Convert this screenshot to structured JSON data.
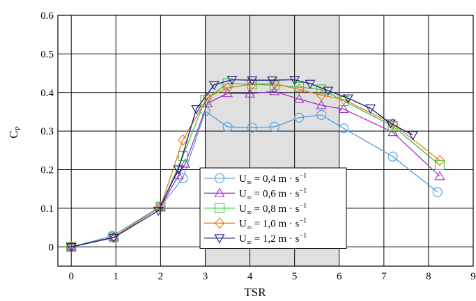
{
  "chart_data": {
    "type": "line",
    "xlabel": "TSR",
    "ylabel": "C",
    "ylabel_sub": "P",
    "xlim": [
      -0.3,
      9
    ],
    "ylim": [
      -0.05,
      0.6
    ],
    "x_ticks": [
      "0",
      "1",
      "2",
      "3",
      "4",
      "5",
      "6",
      "7",
      "8",
      "9"
    ],
    "y_ticks": [
      "0",
      "0.1",
      "0.2",
      "0.3",
      "0.4",
      "0.5",
      "0.6"
    ],
    "grid": true,
    "shaded_region": [
      3,
      6
    ],
    "shaded_color": "#e0e0e0",
    "legend_position": "bottom-center",
    "legend_value_unit": "m · s",
    "legend_exponent": "−1",
    "legend_symbol": "U",
    "legend_symbol_sub": "∞",
    "series": [
      {
        "legend_value": "0,4",
        "color": "#4c9de0",
        "marker": "circle",
        "x": [
          0,
          0.92,
          2.0,
          2.5,
          3.0,
          3.5,
          4.05,
          4.55,
          5.1,
          5.6,
          6.1,
          7.2,
          8.2
        ],
        "y": [
          0,
          0.028,
          0.105,
          0.178,
          0.352,
          0.311,
          0.309,
          0.311,
          0.335,
          0.342,
          0.307,
          0.234,
          0.142
        ]
      },
      {
        "legend_value": "0,6",
        "color": "#9b30c8",
        "marker": "triangle-up",
        "x": [
          0,
          0.95,
          2.0,
          2.4,
          2.55,
          3.05,
          3.5,
          4.0,
          4.55,
          5.1,
          5.6,
          6.1,
          7.2,
          8.25
        ],
        "y": [
          0,
          0.025,
          0.104,
          0.185,
          0.215,
          0.372,
          0.398,
          0.397,
          0.403,
          0.383,
          0.367,
          0.357,
          0.297,
          0.183
        ]
      },
      {
        "legend_value": "0,8",
        "color": "#3cc43c",
        "marker": "square",
        "x": [
          0,
          0.95,
          2.0,
          2.5,
          3.0,
          3.5,
          4.05,
          4.55,
          5.1,
          5.6,
          6.1,
          7.2,
          8.25
        ],
        "y": [
          0,
          0.025,
          0.104,
          0.235,
          0.381,
          0.424,
          0.421,
          0.419,
          0.414,
          0.408,
          0.378,
          0.313,
          0.212
        ]
      },
      {
        "legend_value": "1,0",
        "color": "#e07a1a",
        "marker": "diamond",
        "x": [
          0,
          0.95,
          2.0,
          2.5,
          3.05,
          3.5,
          4.05,
          4.55,
          5.1,
          5.6,
          6.1,
          7.2,
          8.25
        ],
        "y": [
          0,
          0.025,
          0.104,
          0.277,
          0.387,
          0.412,
          0.422,
          0.423,
          0.408,
          0.393,
          0.382,
          0.319,
          0.224
        ]
      },
      {
        "legend_value": "1,2",
        "color": "#1a1a80",
        "marker": "triangle-down",
        "x": [
          0,
          0.95,
          1.95,
          2.4,
          2.8,
          3.2,
          3.6,
          4.05,
          4.5,
          5.0,
          5.35,
          5.75,
          6.2,
          6.7,
          7.15,
          7.65
        ],
        "y": [
          0,
          0.024,
          0.094,
          0.201,
          0.357,
          0.42,
          0.433,
          0.432,
          0.432,
          0.433,
          0.423,
          0.405,
          0.385,
          0.359,
          0.32,
          0.29
        ]
      }
    ]
  }
}
